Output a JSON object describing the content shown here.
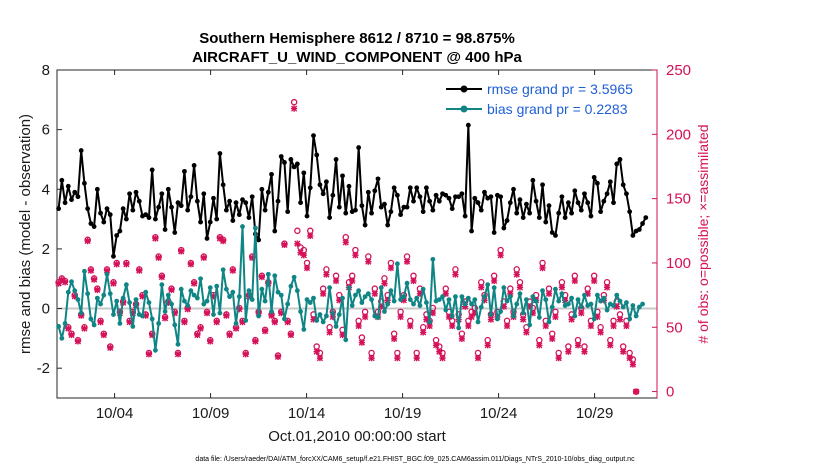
{
  "chart_data": {
    "type": "line",
    "title": "Southern Hemisphere 8612 / 8710 = 98.875%",
    "subtitle": "AIRCRAFT_U_WIND_COMPONENT @ 400 hPa",
    "xlabel": "Oct.01,2010 00:00:00 start",
    "ylabel": "rmse and bias (model - observation)",
    "ylabel_right": "# of obs: o=possible; ×=assimilated",
    "footer": "data file: /Users/raeder/DAI/ATM_forcXX/CAM6_setup/f.e21.FHIST_BGC.f09_025.CAM6assim.011/Diags_NTrS_2010-10/obs_diag_output.nc",
    "x_ticks": [
      "10/04",
      "10/09",
      "10/14",
      "10/19",
      "10/24",
      "10/29"
    ],
    "x_tick_values": [
      4,
      9,
      14,
      19,
      24,
      29
    ],
    "xlim": [
      1,
      32.25
    ],
    "ylim": [
      -3,
      8
    ],
    "y_ticks": [
      "-2",
      "0",
      "2",
      "4",
      "6",
      "8"
    ],
    "y_tick_values": [
      -2,
      0,
      2,
      4,
      6,
      8
    ],
    "ylim_right": [
      -5,
      250
    ],
    "y_ticks_right": [
      "0",
      "50",
      "100",
      "150",
      "200",
      "250"
    ],
    "y_tick_values_right": [
      0,
      50,
      100,
      150,
      200,
      250
    ],
    "legend_location": "top-right",
    "series": [
      {
        "name": "rmse grand pr = 3.5965",
        "color": "#000000",
        "values": [
          3.35,
          4.3,
          3.55,
          4.1,
          3.65,
          3.9,
          3.75,
          5.3,
          4.2,
          3.35,
          2.85,
          2.75,
          4.0,
          3.2,
          2.9,
          3.35,
          3.15,
          1.75,
          2.45,
          2.6,
          3.35,
          3.0,
          3.85,
          3.3,
          3.9,
          3.6,
          3.1,
          3.15,
          3.05,
          4.65,
          3.0,
          3.4,
          3.85,
          2.65,
          4.0,
          3.4,
          2.55,
          3.55,
          3.45,
          4.6,
          3.3,
          3.75,
          4.8,
          3.6,
          2.9,
          3.85,
          2.35,
          2.9,
          3.7,
          3.0,
          5.2,
          4.15,
          3.3,
          3.6,
          2.95,
          3.55,
          3.15,
          3.65,
          3.55,
          3.05,
          3.75,
          2.5,
          2.3,
          4.0,
          3.3,
          3.9,
          4.5,
          2.6,
          3.6,
          5.1,
          4.9,
          3.25,
          5.0,
          4.75,
          4.85,
          3.55,
          4.55,
          3.1,
          4.05,
          5.8,
          5.15,
          4.15,
          3.85,
          4.25,
          3.05,
          3.8,
          5.0,
          3.4,
          4.45,
          3.2,
          4.1,
          3.25,
          3.3,
          5.4,
          3.45,
          2.8,
          3.9,
          3.2,
          3.95,
          4.35,
          3.4,
          3.5,
          2.8,
          3.25,
          4.05,
          3.8,
          3.15,
          3.4,
          3.4,
          4.05,
          3.6,
          4.05,
          3.75,
          3.25,
          4.05,
          3.6,
          3.3,
          3.8,
          3.6,
          3.85,
          3.8,
          3.7,
          3.35,
          3.75,
          3.75,
          3.85,
          3.1,
          6.15,
          2.6,
          3.7,
          3.55,
          3.3,
          3.9,
          3.7,
          3.75,
          2.55,
          3.8,
          3.75,
          2.7,
          2.95,
          3.55,
          4.0,
          3.2,
          3.65,
          3.05,
          3.5,
          3.2,
          4.3,
          3.6,
          3.05,
          4.15,
          2.9,
          3.45,
          2.55,
          2.45,
          3.2,
          3.75,
          3.05,
          3.55,
          3.2,
          3.95,
          3.55,
          3.3,
          3.85,
          3.55,
          3.1,
          4.4,
          4.2,
          3.25,
          3.6,
          3.85,
          4.25,
          3.55,
          4.85,
          5.0,
          4.15,
          3.85,
          3.25,
          2.45,
          2.6,
          2.65,
          2.85,
          3.05
        ]
      },
      {
        "name": "bias grand pr = 0.2283",
        "color": "#108585",
        "values": [
          -0.6,
          -1.0,
          -0.5,
          0.55,
          0.9,
          0.6,
          0.3,
          -0.15,
          1.25,
          0.5,
          -0.35,
          -0.55,
          0.35,
          0.15,
          0.45,
          1.15,
          0.5,
          -0.2,
          0.25,
          -0.5,
          0.35,
          0.8,
          0.2,
          -0.6,
          0.3,
          -0.2,
          -0.25,
          0.55,
          0.2,
          -0.35,
          -1.4,
          -0.5,
          0.8,
          -0.1,
          0.45,
          0.15,
          -0.55,
          -1.2,
          0.65,
          0.25,
          0.1,
          0.6,
          0.45,
          0.35,
          1.0,
          0.15,
          0.25,
          0.7,
          -0.2,
          0.75,
          -0.15,
          1.3,
          0.65,
          0.4,
          0.55,
          -0.5,
          0.4,
          2.75,
          -0.4,
          0.6,
          0.3,
          2.7,
          -0.25,
          0.65,
          0.25,
          1.15,
          -0.1,
          1.1,
          0.55,
          0.45,
          -0.35,
          0.15,
          0.75,
          1.05,
          0.6,
          -0.1,
          -0.7,
          0.3,
          0.2,
          0.35,
          -0.4,
          -0.2,
          -0.45,
          -0.25,
          0.7,
          -0.15,
          -0.6,
          -0.2,
          0.35,
          -1.05,
          0.7,
          0.1,
          0.45,
          0.6,
          0.2,
          0.4,
          0.5,
          0.3,
          -0.25,
          -0.3,
          0.7,
          -0.1,
          0.15,
          0.6,
          0.25,
          1.5,
          0.3,
          0.4,
          0.85,
          0.3,
          0.15,
          0.35,
          0.1,
          0.65,
          0.2,
          -0.45,
          1.65,
          0.25,
          0.3,
          0.4,
          -0.05,
          0.3,
          -0.25,
          0.4,
          -0.65,
          0.4,
          0.15,
          0.35,
          0.15,
          0.3,
          -0.45,
          0.05,
          0.4,
          0.8,
          -0.2,
          0.7,
          -0.35,
          -0.1,
          0.7,
          0.25,
          0.4,
          -0.25,
          0.15,
          0.5,
          -0.15,
          0.3,
          -0.55,
          0.4,
          0.25,
          -0.3,
          0.6,
          0.3,
          -0.45,
          0.05,
          0.65,
          0.25,
          0.5,
          0.1,
          0.15,
          0.35,
          -0.25,
          0.3,
          0.05,
          0.45,
          0.1,
          0.15,
          -0.35,
          0.45,
          0.25,
          0.35,
          -0.05,
          0.15,
          0.1,
          0.45,
          0.25,
          0.05,
          0.2,
          -0.35,
          0.1,
          -0.25,
          0.05,
          0.15
        ]
      }
    ],
    "obs_possible": [
      85,
      88,
      86,
      50,
      45,
      75,
      40,
      60,
      50,
      118,
      95,
      88,
      80,
      55,
      45,
      95,
      35,
      85,
      100,
      62,
      70,
      100,
      55,
      62,
      68,
      95,
      75,
      60,
      30,
      45,
      120,
      105,
      90,
      58,
      70,
      80,
      62,
      30,
      110,
      55,
      65,
      100,
      85,
      45,
      50,
      105,
      62,
      40,
      75,
      55,
      120,
      118,
      60,
      45,
      95,
      50,
      65,
      55,
      30,
      75,
      105,
      40,
      62,
      90,
      48,
      85,
      60,
      55,
      28,
      62,
      115,
      55,
      45,
      225,
      125,
      112,
      110,
      100,
      125,
      60,
      35,
      30,
      80,
      95,
      50,
      62,
      90,
      75,
      48,
      120,
      85,
      90,
      110,
      55,
      42,
      62,
      105,
      30,
      80,
      62,
      70,
      88,
      75,
      100,
      45,
      30,
      62,
      75,
      105,
      55,
      90,
      30,
      80,
      50,
      60,
      55,
      65,
      40,
      35,
      30,
      80,
      62,
      55,
      95,
      60,
      45,
      70,
      55,
      62,
      65,
      30,
      85,
      75,
      40,
      60,
      90,
      62,
      110,
      70,
      55,
      80,
      62,
      95,
      85,
      60,
      50,
      70,
      65,
      75,
      40,
      100,
      55,
      80,
      45,
      62,
      30,
      85,
      75,
      35,
      60,
      90,
      40,
      65,
      35,
      80,
      55,
      90,
      62,
      50,
      75,
      85,
      40,
      55,
      70,
      60,
      35,
      55,
      30,
      25,
      0
    ],
    "obs_assimilated": [
      84,
      87,
      85,
      49,
      44,
      74,
      39,
      59,
      49,
      117,
      94,
      87,
      79,
      54,
      44,
      94,
      34,
      84,
      99,
      61,
      69,
      99,
      54,
      61,
      67,
      94,
      74,
      59,
      29,
      44,
      119,
      104,
      89,
      57,
      69,
      79,
      61,
      29,
      109,
      54,
      64,
      99,
      84,
      44,
      49,
      104,
      61,
      39,
      74,
      54,
      119,
      117,
      59,
      44,
      94,
      49,
      64,
      54,
      29,
      74,
      104,
      39,
      61,
      89,
      47,
      84,
      59,
      54,
      27,
      61,
      114,
      54,
      44,
      220,
      115,
      108,
      106,
      96,
      121,
      56,
      31,
      26,
      76,
      91,
      46,
      58,
      86,
      71,
      44,
      116,
      81,
      86,
      106,
      51,
      38,
      58,
      101,
      26,
      76,
      58,
      66,
      84,
      71,
      96,
      41,
      26,
      58,
      71,
      101,
      51,
      86,
      26,
      76,
      46,
      56,
      51,
      61,
      36,
      31,
      26,
      76,
      58,
      51,
      91,
      56,
      41,
      66,
      51,
      58,
      61,
      26,
      81,
      71,
      36,
      56,
      86,
      58,
      106,
      66,
      51,
      76,
      58,
      91,
      81,
      56,
      46,
      66,
      61,
      71,
      36,
      96,
      51,
      76,
      41,
      58,
      26,
      81,
      71,
      31,
      56,
      86,
      36,
      61,
      31,
      76,
      51,
      86,
      58,
      46,
      71,
      81,
      36,
      51,
      66,
      56,
      31,
      51,
      26,
      21,
      0
    ]
  }
}
